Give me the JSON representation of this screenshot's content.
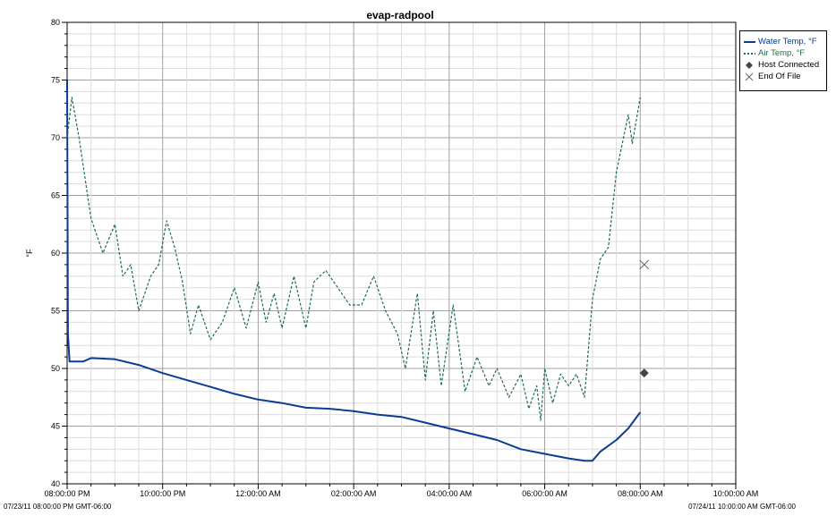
{
  "chart_data": {
    "type": "line",
    "title": "evap-radpool",
    "ylabel": "°F",
    "xlabel": "",
    "ylim": [
      40,
      80
    ],
    "y_ticks": [
      "40",
      "45",
      "50",
      "55",
      "60",
      "65",
      "70",
      "75",
      "80"
    ],
    "x_range": [
      "07/23/11 08:00:00 PM",
      "07/24/11 10:00:00 AM"
    ],
    "x_tick_labels": [
      "08:00:00 PM",
      "10:00:00 PM",
      "12:00:00 AM",
      "02:00:00 AM",
      "04:00:00 AM",
      "06:00:00 AM",
      "08:00:00 AM",
      "10:00:00 AM"
    ],
    "range_start_label": "07/23/11 08:00:00 PM GMT-06:00",
    "range_end_label": "07/24/11 10:00:00 AM GMT-06:00",
    "grid": true,
    "legend_position": "right",
    "series": [
      {
        "name": "Water Temp, °F",
        "color": "#0a3d91",
        "style": "solid",
        "points": [
          [
            "07/23/11 20:00",
            75.0
          ],
          [
            "07/23/11 20:01",
            53.0
          ],
          [
            "07/23/11 20:03",
            50.6
          ],
          [
            "07/23/11 20:20",
            50.6
          ],
          [
            "07/23/11 20:30",
            50.9
          ],
          [
            "07/23/11 21:00",
            50.8
          ],
          [
            "07/23/11 21:30",
            50.3
          ],
          [
            "07/23/11 22:00",
            49.6
          ],
          [
            "07/23/11 22:30",
            49.0
          ],
          [
            "07/23/11 23:00",
            48.4
          ],
          [
            "07/23/11 23:30",
            47.8
          ],
          [
            "07/24/11 00:00",
            47.3
          ],
          [
            "07/24/11 00:30",
            47.0
          ],
          [
            "07/24/11 01:00",
            46.6
          ],
          [
            "07/24/11 01:30",
            46.5
          ],
          [
            "07/24/11 02:00",
            46.3
          ],
          [
            "07/24/11 02:30",
            46.0
          ],
          [
            "07/24/11 03:00",
            45.8
          ],
          [
            "07/24/11 03:30",
            45.3
          ],
          [
            "07/24/11 04:00",
            44.8
          ],
          [
            "07/24/11 04:30",
            44.3
          ],
          [
            "07/24/11 05:00",
            43.8
          ],
          [
            "07/24/11 05:30",
            43.0
          ],
          [
            "07/24/11 06:00",
            42.6
          ],
          [
            "07/24/11 06:30",
            42.2
          ],
          [
            "07/24/11 06:50",
            42.0
          ],
          [
            "07/24/11 07:00",
            42.0
          ],
          [
            "07/24/11 07:10",
            42.8
          ],
          [
            "07/24/11 07:30",
            43.8
          ],
          [
            "07/24/11 07:45",
            44.8
          ],
          [
            "07/24/11 08:00",
            46.2
          ]
        ]
      },
      {
        "name": "Air Temp, °F",
        "color": "#1e6e4a",
        "style": "dotted",
        "points": [
          [
            "07/23/11 20:00",
            70.0
          ],
          [
            "07/23/11 20:06",
            73.5
          ],
          [
            "07/23/11 20:15",
            70.0
          ],
          [
            "07/23/11 20:30",
            63.0
          ],
          [
            "07/23/11 20:45",
            60.0
          ],
          [
            "07/23/11 21:00",
            62.5
          ],
          [
            "07/23/11 21:10",
            58.0
          ],
          [
            "07/23/11 21:20",
            59.0
          ],
          [
            "07/23/11 21:30",
            55.0
          ],
          [
            "07/23/11 21:45",
            58.0
          ],
          [
            "07/23/11 21:55",
            59.0
          ],
          [
            "07/23/11 22:05",
            62.8
          ],
          [
            "07/23/11 22:15",
            60.5
          ],
          [
            "07/23/11 22:25",
            57.5
          ],
          [
            "07/23/11 22:35",
            53.0
          ],
          [
            "07/23/11 22:45",
            55.5
          ],
          [
            "07/23/11 23:00",
            52.5
          ],
          [
            "07/23/11 23:15",
            54.0
          ],
          [
            "07/23/11 23:30",
            57.0
          ],
          [
            "07/23/11 23:45",
            53.5
          ],
          [
            "07/24/11 00:00",
            57.5
          ],
          [
            "07/24/11 00:10",
            54.0
          ],
          [
            "07/24/11 00:20",
            56.5
          ],
          [
            "07/24/11 00:30",
            53.5
          ],
          [
            "07/24/11 00:45",
            58.0
          ],
          [
            "07/24/11 01:00",
            53.5
          ],
          [
            "07/24/11 01:10",
            57.5
          ],
          [
            "07/24/11 01:25",
            58.5
          ],
          [
            "07/24/11 01:40",
            57.0
          ],
          [
            "07/24/11 01:55",
            55.5
          ],
          [
            "07/24/11 02:10",
            55.5
          ],
          [
            "07/24/11 02:25",
            58.0
          ],
          [
            "07/24/11 02:40",
            55.0
          ],
          [
            "07/24/11 02:55",
            53.0
          ],
          [
            "07/24/11 03:05",
            50.0
          ],
          [
            "07/24/11 03:20",
            56.5
          ],
          [
            "07/24/11 03:30",
            49.0
          ],
          [
            "07/24/11 03:40",
            55.0
          ],
          [
            "07/24/11 03:50",
            48.5
          ],
          [
            "07/24/11 04:05",
            55.5
          ],
          [
            "07/24/11 04:20",
            48.0
          ],
          [
            "07/24/11 04:35",
            51.0
          ],
          [
            "07/24/11 04:50",
            48.5
          ],
          [
            "07/24/11 05:00",
            50.0
          ],
          [
            "07/24/11 05:15",
            47.5
          ],
          [
            "07/24/11 05:30",
            49.5
          ],
          [
            "07/24/11 05:40",
            46.5
          ],
          [
            "07/24/11 05:50",
            48.5
          ],
          [
            "07/24/11 05:55",
            45.5
          ],
          [
            "07/24/11 06:00",
            50.0
          ],
          [
            "07/24/11 06:10",
            47.0
          ],
          [
            "07/24/11 06:20",
            49.5
          ],
          [
            "07/24/11 06:30",
            48.5
          ],
          [
            "07/24/11 06:40",
            49.5
          ],
          [
            "07/24/11 06:50",
            47.5
          ],
          [
            "07/24/11 07:00",
            56.0
          ],
          [
            "07/24/11 07:10",
            59.5
          ],
          [
            "07/24/11 07:20",
            60.5
          ],
          [
            "07/24/11 07:30",
            67.0
          ],
          [
            "07/24/11 07:45",
            72.0
          ],
          [
            "07/24/11 07:50",
            69.5
          ],
          [
            "07/24/11 08:00",
            73.5
          ]
        ]
      },
      {
        "name": "Host Connected",
        "color": "#444444",
        "marker": "diamond",
        "points": [
          [
            "07/24/11 08:05",
            49.6
          ]
        ]
      },
      {
        "name": "End Of File",
        "color": "#666666",
        "marker": "x",
        "points": [
          [
            "07/24/11 08:05",
            59.0
          ]
        ]
      }
    ]
  }
}
